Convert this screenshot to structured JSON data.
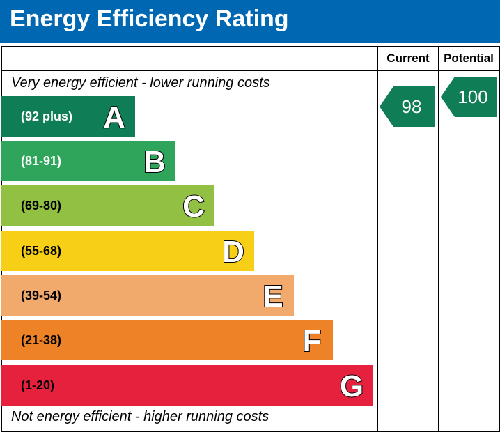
{
  "title": "Energy Efficiency Rating",
  "columns": {
    "current": "Current",
    "potential": "Potential"
  },
  "top_note": "Very energy efficient - lower running costs",
  "bottom_note": "Not energy efficient - higher running costs",
  "colors": {
    "header_bg": "#0067b3",
    "arrow": "#0f7d55"
  },
  "chart_data": {
    "type": "bar",
    "categories": [
      "A",
      "B",
      "C",
      "D",
      "E",
      "F",
      "G"
    ],
    "bands": [
      {
        "letter": "A",
        "range": "(92 plus)",
        "color": "#0f7d55",
        "text_color": "#ffffff"
      },
      {
        "letter": "B",
        "range": "(81-91)",
        "color": "#2ea55a",
        "text_color": "#ffffff"
      },
      {
        "letter": "C",
        "range": "(69-80)",
        "color": "#92c043",
        "text_color": "#000000"
      },
      {
        "letter": "D",
        "range": "(55-68)",
        "color": "#f6cf16",
        "text_color": "#000000"
      },
      {
        "letter": "E",
        "range": "(39-54)",
        "color": "#f1a96c",
        "text_color": "#000000"
      },
      {
        "letter": "F",
        "range": "(21-38)",
        "color": "#ee8227",
        "text_color": "#000000"
      },
      {
        "letter": "G",
        "range": "(1-20)",
        "color": "#e5213d",
        "text_color": "#000000"
      }
    ],
    "series": [
      {
        "name": "Current",
        "value": 98,
        "band": "A"
      },
      {
        "name": "Potential",
        "value": 100,
        "band": "A"
      }
    ]
  }
}
